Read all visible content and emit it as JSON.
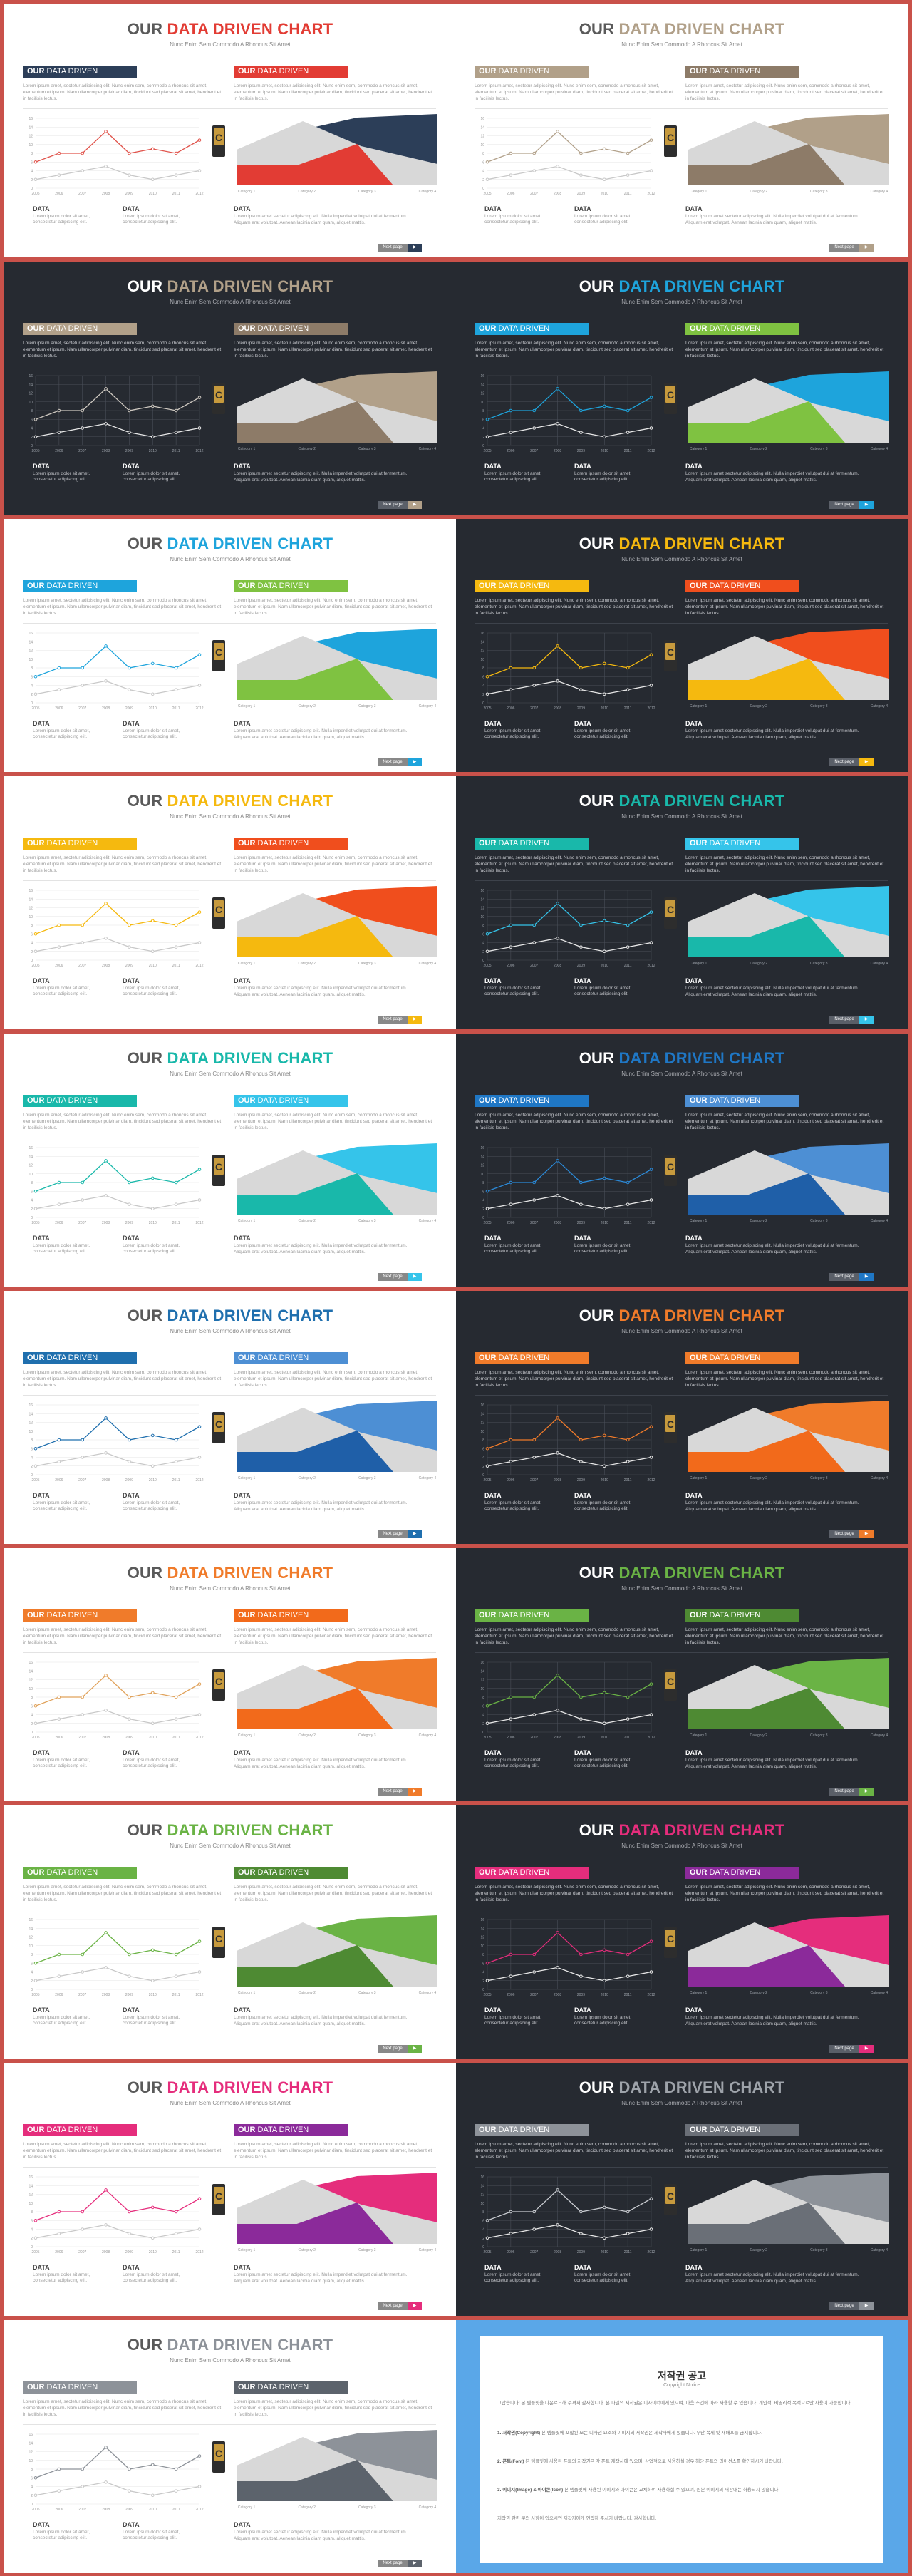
{
  "slide": {
    "title_a": "OUR",
    "title_b": "DATA DRIVEN CHART",
    "subtitle": "Nunc Enim Sem Commodo A Rhoncus Sit Amet",
    "label_a_bold": "OUR",
    "label_a_rest": "DATA DRIVEN",
    "label_b_bold": "OUR",
    "label_b_rest": "DATA DRIVEN",
    "left_para": "Lorem ipsum amet, sectetur adipiscing elit. Nunc enim sem, commodo a rhoncus sit amet, elementum et ipsum. Nam ullamcorper pulvinar diam, tincidunt sed placerat sit amet, hendrerit et in facilisis lectus.",
    "right_para": "Lorem ipsum amet, sectetur adipiscing elit. Nunc enim sem, commodo a rhoncus sit amet, elementum et ipsum. Nam ullamcorper pulvinar diam, tincidunt sed placerat sit amet, hendrerit et in facilisis lectus.",
    "data_head": "DATA",
    "data_text": "Lorem ipsum dolor sit amet, consectetur adipiscing elit.",
    "right_bottom_text": "Lorem ipsum amet sectetur adipiscing elit. Nulla imperdiet volutpat dui at fermentum. Aliquam erat volutpat. Aenean lacinia diam quam, aliquet mattis.",
    "page_label": "Next page",
    "page_arrow": "▶"
  },
  "chart_data": {
    "type": "line",
    "categories": [
      "2005",
      "2006",
      "2007",
      "2008",
      "2009",
      "2010",
      "2011",
      "2012"
    ],
    "series": [
      {
        "values": [
          6,
          8,
          8,
          13,
          8,
          9,
          8,
          11
        ]
      },
      {
        "values": [
          2,
          3,
          4,
          5,
          3,
          2,
          3,
          4
        ]
      }
    ],
    "ylim": [
      0,
      16
    ],
    "yticks": [
      "0",
      "2",
      "4",
      "6",
      "8",
      "10",
      "12",
      "14",
      "16"
    ]
  },
  "area_chart": {
    "type": "area",
    "categories": [
      "Category 1",
      "Category 2",
      "Category 3",
      "Category 4"
    ]
  },
  "themes": [
    {
      "bg": "light",
      "title_b": "#e23c34",
      "label_a": "#2c3e58",
      "label_b": "#e23c34",
      "line": "#e0534b",
      "area1": "#2c3e58",
      "area2": "#e23c34",
      "area3": "#d8d8d8",
      "nav": "#2c3e58"
    },
    {
      "bg": "light",
      "title_b": "#b1a089",
      "label_a": "#b1a089",
      "label_b": "#8d7b68",
      "line": "#b1a089",
      "area1": "#b1a089",
      "area2": "#8d7b68",
      "area3": "#d8d8d8",
      "nav": "#b1a089"
    },
    {
      "bg": "dark",
      "title_b": "#b1a089",
      "label_a": "#b1a089",
      "label_b": "#8d7b68",
      "line": "#cfc9c1",
      "area1": "#b1a089",
      "area2": "#8d7b68",
      "area3": "#d8d8d8",
      "nav": "#b1a089"
    },
    {
      "bg": "dark",
      "title_b": "#1ea4dc",
      "label_a": "#1ea4dc",
      "label_b": "#7fc241",
      "line": "#1ea4dc",
      "area1": "#1ea4dc",
      "area2": "#7fc241",
      "area3": "#d8d8d8",
      "nav": "#1ea4dc"
    },
    {
      "bg": "light",
      "title_b": "#1ea4dc",
      "label_a": "#1ea4dc",
      "label_b": "#7fc241",
      "line": "#1ea4dc",
      "area1": "#1ea4dc",
      "area2": "#7fc241",
      "area3": "#d8d8d8",
      "nav": "#1ea4dc"
    },
    {
      "bg": "dark",
      "title_b": "#f5b90f",
      "label_a": "#f5b90f",
      "label_b": "#f04e1d",
      "line": "#f5b90f",
      "area1": "#f04e1d",
      "area2": "#f5b90f",
      "area3": "#d8d8d8",
      "nav": "#f5b90f"
    },
    {
      "bg": "light",
      "title_b": "#f5b90f",
      "label_a": "#f5b90f",
      "label_b": "#f04e1d",
      "line": "#f5b90f",
      "area1": "#f04e1d",
      "area2": "#f5b90f",
      "area3": "#d8d8d8",
      "nav": "#f5b90f"
    },
    {
      "bg": "dark",
      "title_b": "#19b8aa",
      "label_a": "#19b8aa",
      "label_b": "#35c4ea",
      "line": "#35c4ea",
      "area1": "#35c4ea",
      "area2": "#19b8aa",
      "area3": "#d8d8d8",
      "nav": "#35c4ea"
    },
    {
      "bg": "light",
      "title_b": "#19b8aa",
      "label_a": "#19b8aa",
      "label_b": "#35c4ea",
      "line": "#19b8aa",
      "area1": "#35c4ea",
      "area2": "#19b8aa",
      "area3": "#d8d8d8",
      "nav": "#35c4ea"
    },
    {
      "bg": "dark",
      "title_b": "#1f77c5",
      "label_a": "#1f77c5",
      "label_b": "#4d8fd4",
      "line": "#2b8ad9",
      "area1": "#4d8fd4",
      "area2": "#1f5fa8",
      "area3": "#d8d8d8",
      "nav": "#1f77c5"
    },
    {
      "bg": "light",
      "title_b": "#1f6fae",
      "label_a": "#1f6fae",
      "label_b": "#4d8fd4",
      "line": "#1f6fae",
      "area1": "#4d8fd4",
      "area2": "#1f5fa8",
      "area3": "#d8d8d8",
      "nav": "#1f6fae"
    },
    {
      "bg": "dark",
      "title_b": "#f07b2a",
      "label_a": "#f07b2a",
      "label_b": "#f07b2a",
      "line": "#f07b2a",
      "area1": "#f07b2a",
      "area2": "#f26a1b",
      "area3": "#d8d8d8",
      "nav": "#f07b2a"
    },
    {
      "bg": "light",
      "title_b": "#f07b2a",
      "label_a": "#f07b2a",
      "label_b": "#f26a1b",
      "line": "#e0a25b",
      "area1": "#f07b2a",
      "area2": "#f26a1b",
      "area3": "#d8d8d8",
      "nav": "#f07b2a"
    },
    {
      "bg": "dark",
      "title_b": "#6ab345",
      "label_a": "#6ab345",
      "label_b": "#4e8a33",
      "line": "#6ab345",
      "area1": "#6ab345",
      "area2": "#4e8a33",
      "area3": "#d8d8d8",
      "nav": "#6ab345"
    },
    {
      "bg": "light",
      "title_b": "#6ab345",
      "label_a": "#6ab345",
      "label_b": "#4e8a33",
      "line": "#6ab345",
      "area1": "#6ab345",
      "area2": "#4e8a33",
      "area3": "#d8d8d8",
      "nav": "#6ab345"
    },
    {
      "bg": "dark",
      "title_b": "#e52d7c",
      "label_a": "#e52d7c",
      "label_b": "#8b2a9a",
      "line": "#e52d7c",
      "area1": "#e52d7c",
      "area2": "#8b2a9a",
      "area3": "#d8d8d8",
      "nav": "#e52d7c"
    },
    {
      "bg": "light",
      "title_b": "#e52d7c",
      "label_a": "#e52d7c",
      "label_b": "#8b2a9a",
      "line": "#e52d7c",
      "area1": "#e52d7c",
      "area2": "#8b2a9a",
      "area3": "#d8d8d8",
      "nav": "#e52d7c"
    },
    {
      "bg": "dark",
      "title_b": "#9ea3aa",
      "label_a": "#8d9299",
      "label_b": "#6a6f77",
      "line": "#c9ccd1",
      "area1": "#8d9299",
      "area2": "#6a6f77",
      "area3": "#d8d8d8",
      "nav": "#8d9299"
    },
    {
      "bg": "light",
      "title_b": "#8d9299",
      "label_a": "#8d9299",
      "label_b": "#5c636c",
      "line": "#8d9299",
      "area1": "#8d9299",
      "area2": "#5c636c",
      "area3": "#d8d8d8",
      "nav": "#5c636c"
    }
  ],
  "copyright": {
    "title": "저작권 공고",
    "subtitle": "Copyright Notice",
    "intro": "고맙습니다! 본 템플릿을 다운로드해 주셔서 감사합니다. 본 파일의 저작권은 디자이너에게 있으며, 다음 조건에 따라 사용할 수 있습니다. 개인적, 비영리적 목적으로만 사용이 가능합니다.",
    "items": [
      {
        "head": "1. 저작권(Copyright)",
        "text": "본 템플릿에 포함된 모든 디자인 요소와 이미지의 저작권은 제작자에게 있습니다. 무단 복제 및 재배포를 금지합니다."
      },
      {
        "head": "2. 폰트(Font)",
        "text": "본 템플릿에 사용된 폰트의 저작권은 각 폰트 제작사에 있으며, 상업적으로 사용하실 경우 해당 폰트의 라이선스를 확인하시기 바랍니다."
      },
      {
        "head": "3. 이미지(Image) & 아이콘(Icon)",
        "text": "본 템플릿에 사용된 이미지와 아이콘은 교체하여 사용하실 수 있으며, 원본 이미지의 재판매는 허용되지 않습니다."
      }
    ],
    "outro": "저작권 관련 문의 사항이 있으시면 제작자에게 연락해 주시기 바랍니다. 감사합니다."
  }
}
